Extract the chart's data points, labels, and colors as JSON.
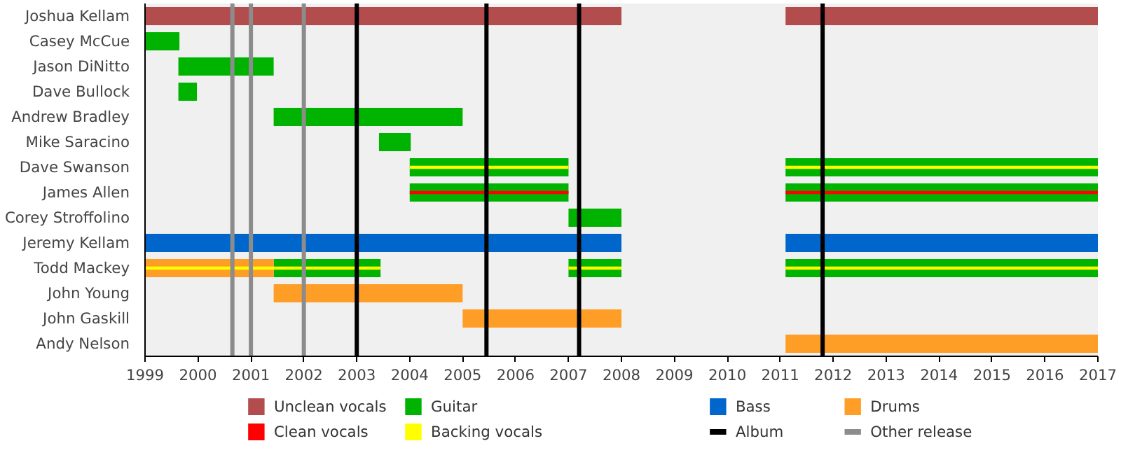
{
  "chart_data": {
    "type": "bar",
    "orientation": "horizontal",
    "categories": [
      "Joshua Kellam",
      "Casey McCue",
      "Jason DiNitto",
      "Dave Bullock",
      "Andrew Bradley",
      "Mike Saracino",
      "Dave Swanson",
      "James Allen",
      "Corey Stroffolino",
      "Jeremy Kellam",
      "Todd Mackey",
      "John Young",
      "John Gaskill",
      "Andy Nelson"
    ],
    "series": [
      {
        "name": "Unclean vocals",
        "color": "#b34d4d",
        "base": [
          1999,
          null,
          null,
          null,
          null,
          null,
          null,
          null,
          null,
          null,
          null,
          null,
          null,
          null
        ],
        "values": [
          9.0,
          null,
          null,
          null,
          null,
          null,
          null,
          null,
          null,
          null,
          null,
          null,
          null,
          null
        ]
      },
      {
        "color": "#b34d4d",
        "base": [
          2011.1,
          null,
          null,
          null,
          null,
          null,
          null,
          null,
          null,
          null,
          null,
          null,
          null,
          null
        ],
        "values": [
          5.9,
          null,
          null,
          null,
          null,
          null,
          null,
          null,
          null,
          null,
          null,
          null,
          null,
          null
        ]
      },
      {
        "name": "Guitar",
        "color": "#00b300",
        "base": [
          null,
          1999,
          1999.63,
          1999.63,
          2001.43,
          2003.42,
          2004,
          2004,
          2007,
          null,
          2001.43,
          null,
          null,
          null
        ],
        "values": [
          null,
          0.65,
          1.8,
          0.35,
          3.57,
          0.6,
          3.0,
          3.0,
          1.0,
          null,
          2.02,
          null,
          null,
          null
        ]
      },
      {
        "color": "#00b300",
        "base": [
          null,
          null,
          null,
          null,
          null,
          null,
          null,
          null,
          null,
          null,
          2007,
          null,
          null,
          null
        ],
        "values": [
          null,
          null,
          null,
          null,
          null,
          null,
          null,
          null,
          null,
          null,
          1.0,
          null,
          null,
          null
        ]
      },
      {
        "color": "#00b300",
        "base": [
          null,
          null,
          null,
          null,
          null,
          null,
          2011.1,
          2011.1,
          null,
          null,
          2011.1,
          null,
          null,
          null
        ],
        "values": [
          null,
          null,
          null,
          null,
          null,
          null,
          5.9,
          5.9,
          null,
          null,
          5.9,
          null,
          null,
          null
        ]
      },
      {
        "name": "Bass",
        "color": "#0066cc",
        "base": [
          null,
          null,
          null,
          null,
          null,
          null,
          null,
          null,
          null,
          1999,
          null,
          null,
          null,
          null
        ],
        "values": [
          null,
          null,
          null,
          null,
          null,
          null,
          null,
          null,
          null,
          9.0,
          null,
          null,
          null,
          null
        ]
      },
      {
        "color": "#0066cc",
        "base": [
          null,
          null,
          null,
          null,
          null,
          null,
          null,
          null,
          null,
          2011.1,
          null,
          null,
          null,
          null
        ],
        "values": [
          null,
          null,
          null,
          null,
          null,
          null,
          null,
          null,
          null,
          5.9,
          null,
          null,
          null,
          null
        ]
      },
      {
        "name": "Drums",
        "color": "#ff9e26",
        "base": [
          null,
          null,
          null,
          null,
          null,
          null,
          null,
          null,
          null,
          null,
          1999,
          2001.43,
          2005,
          2011.1
        ],
        "values": [
          null,
          null,
          null,
          null,
          null,
          null,
          null,
          null,
          null,
          null,
          2.43,
          3.57,
          3.0,
          5.9
        ]
      },
      {
        "name": "Clean vocals",
        "color": "#ff0000",
        "base": [
          null,
          null,
          null,
          null,
          null,
          null,
          null,
          2004,
          null,
          null,
          null,
          null,
          null,
          null
        ],
        "values": [
          null,
          null,
          null,
          null,
          null,
          null,
          null,
          3.0,
          null,
          null,
          null,
          null,
          null,
          null
        ]
      },
      {
        "color": "#ff0000",
        "base": [
          null,
          null,
          null,
          null,
          null,
          null,
          null,
          2011.1,
          null,
          null,
          null,
          null,
          null,
          null
        ],
        "values": [
          null,
          null,
          null,
          null,
          null,
          null,
          null,
          5.9,
          null,
          null,
          null,
          null,
          null,
          null
        ]
      },
      {
        "name": "Backing vocals",
        "color": "#ffff00",
        "base": [
          null,
          null,
          null,
          null,
          null,
          null,
          2004,
          null,
          null,
          null,
          1999,
          null,
          null,
          null
        ],
        "values": [
          null,
          null,
          null,
          null,
          null,
          null,
          3.0,
          null,
          null,
          null,
          4.45,
          null,
          null,
          null
        ]
      },
      {
        "color": "#ffff00",
        "base": [
          null,
          null,
          null,
          null,
          null,
          null,
          2011.1,
          null,
          null,
          null,
          2007,
          null,
          null,
          null
        ],
        "values": [
          null,
          null,
          null,
          null,
          null,
          null,
          5.9,
          null,
          null,
          null,
          1.0,
          null,
          null,
          null
        ]
      },
      {
        "color": "#ffff00",
        "base": [
          null,
          null,
          null,
          null,
          null,
          null,
          null,
          null,
          null,
          null,
          2011.1,
          null,
          null,
          null
        ],
        "values": [
          null,
          null,
          null,
          null,
          null,
          null,
          null,
          null,
          null,
          null,
          5.9,
          null,
          null,
          null
        ]
      }
    ],
    "ref_lines": [
      {
        "axis": "x",
        "value": 2003.0,
        "label": "Album",
        "color": "#000000"
      },
      {
        "axis": "x",
        "value": 2005.45,
        "color": "#000000"
      },
      {
        "axis": "x",
        "value": 2007.2,
        "color": "#000000"
      },
      {
        "axis": "x",
        "value": 2011.8,
        "color": "#000000"
      },
      {
        "axis": "x",
        "value": 2000.65,
        "label": "Other release",
        "color": "#8c8c8c"
      },
      {
        "axis": "x",
        "value": 2001.0,
        "color": "#8c8c8c"
      },
      {
        "axis": "x",
        "value": 2002.0,
        "color": "#8c8c8c"
      }
    ],
    "xlim": [
      1999,
      2017
    ],
    "xticks": [
      1999,
      2000,
      2001,
      2002,
      2003,
      2004,
      2005,
      2006,
      2007,
      2008,
      2009,
      2010,
      2011,
      2012,
      2013,
      2014,
      2015,
      2016,
      2017
    ],
    "grid": "y",
    "legend": "bottom"
  }
}
